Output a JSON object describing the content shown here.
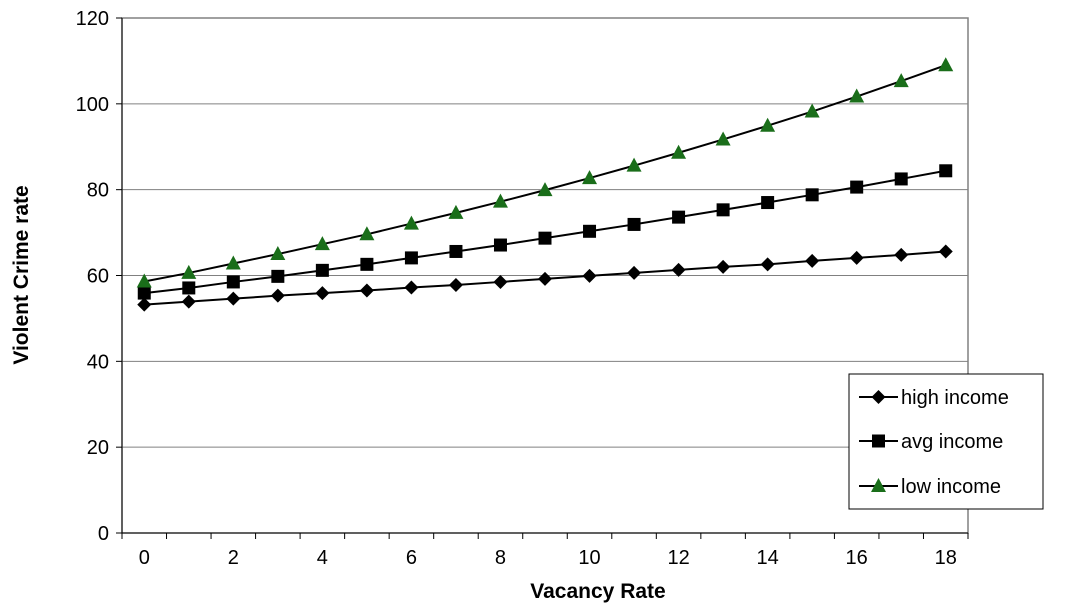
{
  "chart_data": {
    "type": "line",
    "title": "",
    "xlabel": "Vacancy Rate",
    "ylabel": "Violent Crime rate",
    "xlim": [
      -0.5,
      18.5
    ],
    "ylim": [
      0,
      120
    ],
    "x_ticks": [
      0,
      2,
      4,
      6,
      8,
      10,
      12,
      14,
      16,
      18
    ],
    "y_ticks": [
      0,
      20,
      40,
      60,
      80,
      100,
      120
    ],
    "grid": "horizontal",
    "legend_position": "right",
    "x": [
      0,
      1,
      2,
      3,
      4,
      5,
      6,
      7,
      8,
      9,
      10,
      11,
      12,
      13,
      14,
      15,
      16,
      17,
      18
    ],
    "series": [
      {
        "name": "high income",
        "marker": "diamond",
        "color": "#000000",
        "values": [
          53.2,
          53.9,
          54.6,
          55.3,
          55.9,
          56.5,
          57.2,
          57.8,
          58.5,
          59.2,
          59.9,
          60.6,
          61.3,
          62.0,
          62.6,
          63.4,
          64.1,
          64.8,
          65.6
        ]
      },
      {
        "name": "avg income",
        "marker": "square",
        "color": "#000000",
        "values": [
          55.9,
          57.1,
          58.5,
          59.8,
          61.2,
          62.6,
          64.1,
          65.6,
          67.1,
          68.7,
          70.3,
          71.9,
          73.6,
          75.3,
          77.0,
          78.8,
          80.6,
          82.5,
          84.4
        ]
      },
      {
        "name": "low income",
        "marker": "triangle",
        "color": "#1a6e1a",
        "values": [
          58.6,
          60.6,
          62.8,
          65.0,
          67.3,
          69.6,
          72.1,
          74.6,
          77.2,
          79.9,
          82.7,
          85.6,
          88.6,
          91.7,
          94.9,
          98.2,
          101.7,
          105.3,
          109.0
        ]
      }
    ]
  }
}
